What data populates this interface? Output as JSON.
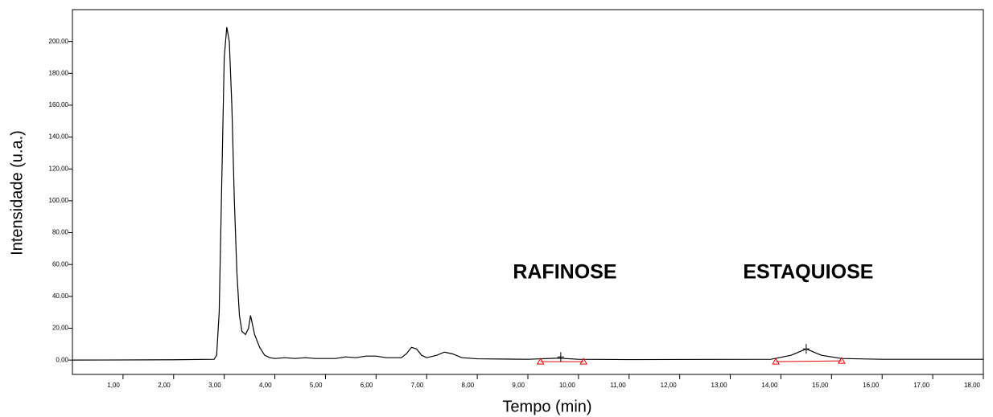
{
  "chart_data": {
    "type": "line",
    "xlabel": "Tempo (min)",
    "ylabel": "Intensidade (u.a.)",
    "x": [
      0,
      2.0,
      2.8,
      2.85,
      2.9,
      2.95,
      3.0,
      3.05,
      3.1,
      3.15,
      3.2,
      3.25,
      3.3,
      3.35,
      3.42,
      3.48,
      3.52,
      3.56,
      3.6,
      3.7,
      3.8,
      3.9,
      4.0,
      4.2,
      4.4,
      4.6,
      4.8,
      5.2,
      5.4,
      5.6,
      5.8,
      6.0,
      6.2,
      6.5,
      6.6,
      6.7,
      6.8,
      6.9,
      7.0,
      7.2,
      7.35,
      7.5,
      7.7,
      8.0,
      9.0,
      9.6,
      10.0,
      11.0,
      13.8,
      14.2,
      14.5,
      14.8,
      15.2,
      16.0,
      18.0
    ],
    "values": [
      0,
      0.2,
      0.5,
      3,
      30,
      110,
      190,
      209,
      200,
      160,
      100,
      55,
      28,
      18,
      16,
      20,
      28,
      22,
      16,
      8,
      3,
      1.5,
      1,
      1.5,
      1,
      1.5,
      1,
      1,
      2,
      1.5,
      2.5,
      2.5,
      1.5,
      1.5,
      4,
      8,
      7,
      3,
      1.5,
      3,
      5,
      4,
      1.5,
      0.8,
      0.5,
      1.2,
      0.5,
      0.3,
      0.5,
      3,
      7,
      3,
      1,
      0.5,
      0.5
    ],
    "color": "#000000",
    "integration": [
      {
        "x": [
          9.25,
          9.65,
          10.1
        ],
        "y": [
          -1,
          2,
          -1
        ]
      },
      {
        "x": [
          13.9,
          14.5,
          15.2
        ],
        "y": [
          -1,
          7,
          -0.5
        ]
      }
    ],
    "integration_color": "#e00000",
    "annotations": [
      {
        "text": "RAFINOSE",
        "x": 9.73,
        "y": 54.5
      },
      {
        "text": "ESTAQUIOSE",
        "x": 14.54,
        "y": 54.5
      }
    ],
    "xlim": [
      0,
      18
    ],
    "xticks": [
      {
        "value": 1,
        "label": "1,00"
      },
      {
        "value": 2,
        "label": "2,00"
      },
      {
        "value": 3,
        "label": "3,00"
      },
      {
        "value": 4,
        "label": "4,00"
      },
      {
        "value": 5,
        "label": "5,00"
      },
      {
        "value": 6,
        "label": "6,00"
      },
      {
        "value": 7,
        "label": "7,00"
      },
      {
        "value": 8,
        "label": "8,00"
      },
      {
        "value": 9,
        "label": "9,00"
      },
      {
        "value": 10,
        "label": "10,00"
      },
      {
        "value": 11,
        "label": "11,00"
      },
      {
        "value": 12,
        "label": "12,00"
      },
      {
        "value": 13,
        "label": "13,00"
      },
      {
        "value": 14,
        "label": "14,00"
      },
      {
        "value": 15,
        "label": "15,00"
      },
      {
        "value": 16,
        "label": "16,00"
      },
      {
        "value": 17,
        "label": "17,00"
      },
      {
        "value": 18,
        "label": "18,00"
      }
    ],
    "ylim": [
      -9,
      220
    ],
    "yticks": [
      {
        "value": 0,
        "label": "0,00"
      },
      {
        "value": 20,
        "label": "20,00"
      },
      {
        "value": 40,
        "label": "40,00"
      },
      {
        "value": 60,
        "label": "60,00"
      },
      {
        "value": 80,
        "label": "80,00"
      },
      {
        "value": 100,
        "label": "100,00"
      },
      {
        "value": 120,
        "label": "120,00"
      },
      {
        "value": 140,
        "label": "140,00"
      },
      {
        "value": 160,
        "label": "160,00"
      },
      {
        "value": 180,
        "label": "180,00"
      },
      {
        "value": 200,
        "label": "200,00"
      }
    ],
    "grid": false
  }
}
